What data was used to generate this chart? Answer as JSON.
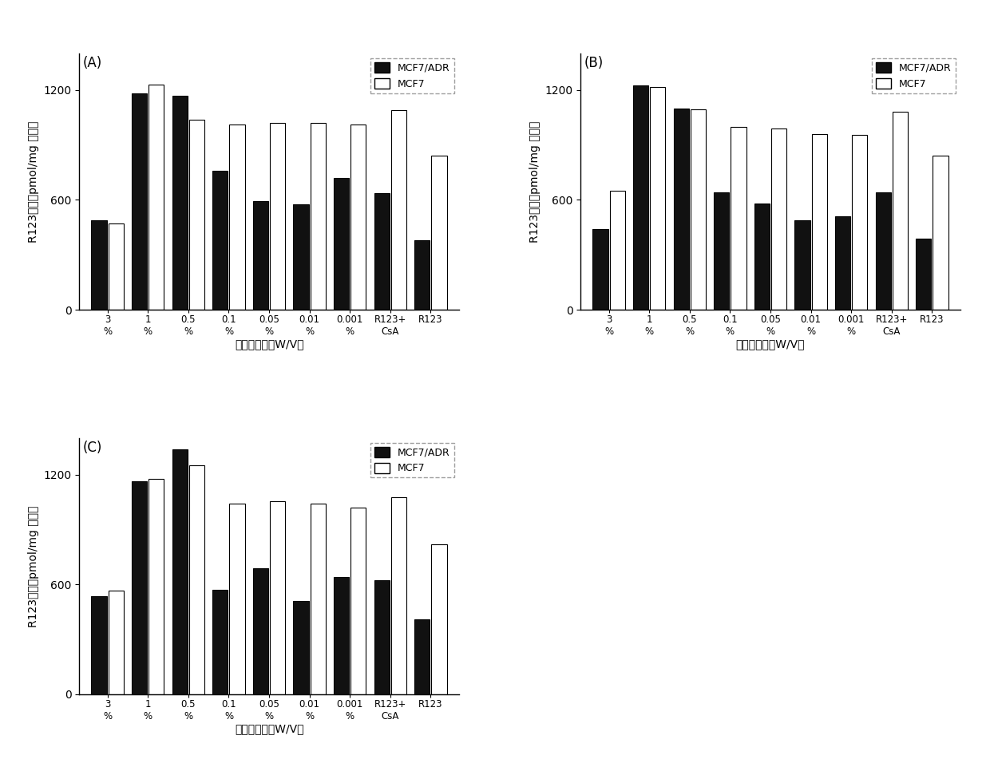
{
  "panels": [
    {
      "label": "(A)",
      "mcf7_adr": [
        490,
        1180,
        1170,
        760,
        595,
        575,
        720,
        635,
        380
      ],
      "mcf7": [
        470,
        1230,
        1040,
        1010,
        1020,
        1020,
        1010,
        1090,
        840
      ]
    },
    {
      "label": "(B)",
      "mcf7_adr": [
        440,
        1225,
        1100,
        640,
        580,
        490,
        510,
        640,
        390
      ],
      "mcf7": [
        650,
        1215,
        1095,
        1000,
        990,
        960,
        955,
        1080,
        840
      ]
    },
    {
      "label": "(C)",
      "mcf7_adr": [
        535,
        1165,
        1340,
        570,
        690,
        510,
        640,
        625,
        410
      ],
      "mcf7": [
        565,
        1175,
        1250,
        1040,
        1055,
        1040,
        1020,
        1075,
        820
      ]
    }
  ],
  "tick_line1": [
    "3",
    "1",
    "0.5",
    "0.1",
    "0.05",
    "0.01",
    "0.001",
    "R123+",
    "R123"
  ],
  "tick_line2": [
    "%",
    "%",
    "%",
    "%",
    "%",
    "%",
    "%",
    "CsA",
    ""
  ],
  "ylim": [
    0,
    1400
  ],
  "yticks": [
    0,
    600,
    1200
  ],
  "ylabel_cn": "R123浓度（pmol/mg 蛋白）",
  "xlabel_cn": "聚合物浓度（W/V）",
  "color_adr": "#111111",
  "color_mcf7": "#ffffff",
  "bar_edge": "#000000",
  "bar_width": 0.38,
  "bar_gap": 0.04,
  "legend_labels": [
    "MCF7/ADR",
    "MCF7"
  ],
  "background": "#ffffff"
}
